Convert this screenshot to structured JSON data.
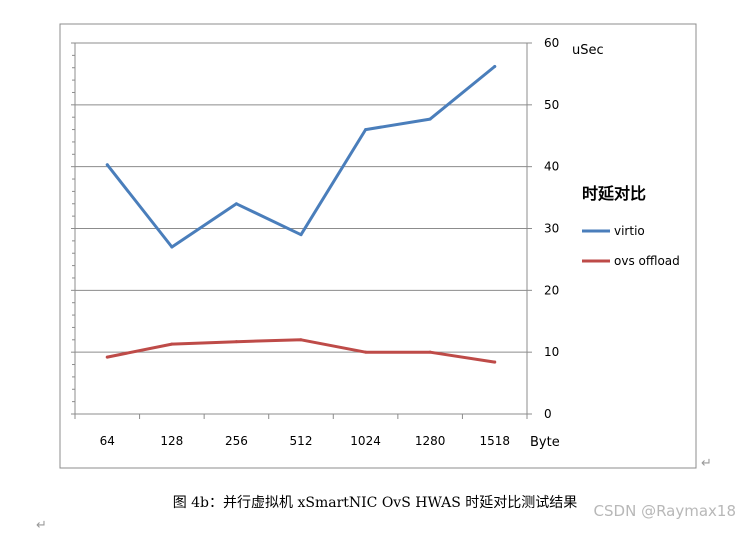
{
  "caption": {
    "text": "图 4b：并行虚拟机 xSmartNIC OvS HWAS 时延对比测试结果"
  },
  "watermark": {
    "text": "CSDN @Raymax18"
  },
  "chart_data": {
    "type": "line",
    "title": "时延对比",
    "xlabel": "Byte",
    "ylabel": "uSec",
    "categories": [
      "64",
      "128",
      "256",
      "512",
      "1024",
      "1280",
      "1518"
    ],
    "ylim": [
      0,
      60
    ],
    "yticks": [
      0,
      10,
      20,
      30,
      40,
      50,
      60
    ],
    "grid": true,
    "legend_position": "right",
    "series": [
      {
        "name": "virtio",
        "color": "#4a7ebb",
        "values": [
          40.3,
          27.0,
          34.0,
          29.0,
          46.0,
          47.7,
          56.2
        ]
      },
      {
        "name": "ovs offload",
        "color": "#be4b48",
        "values": [
          9.2,
          11.3,
          11.7,
          12.0,
          10.0,
          10.0,
          8.4
        ]
      }
    ]
  }
}
